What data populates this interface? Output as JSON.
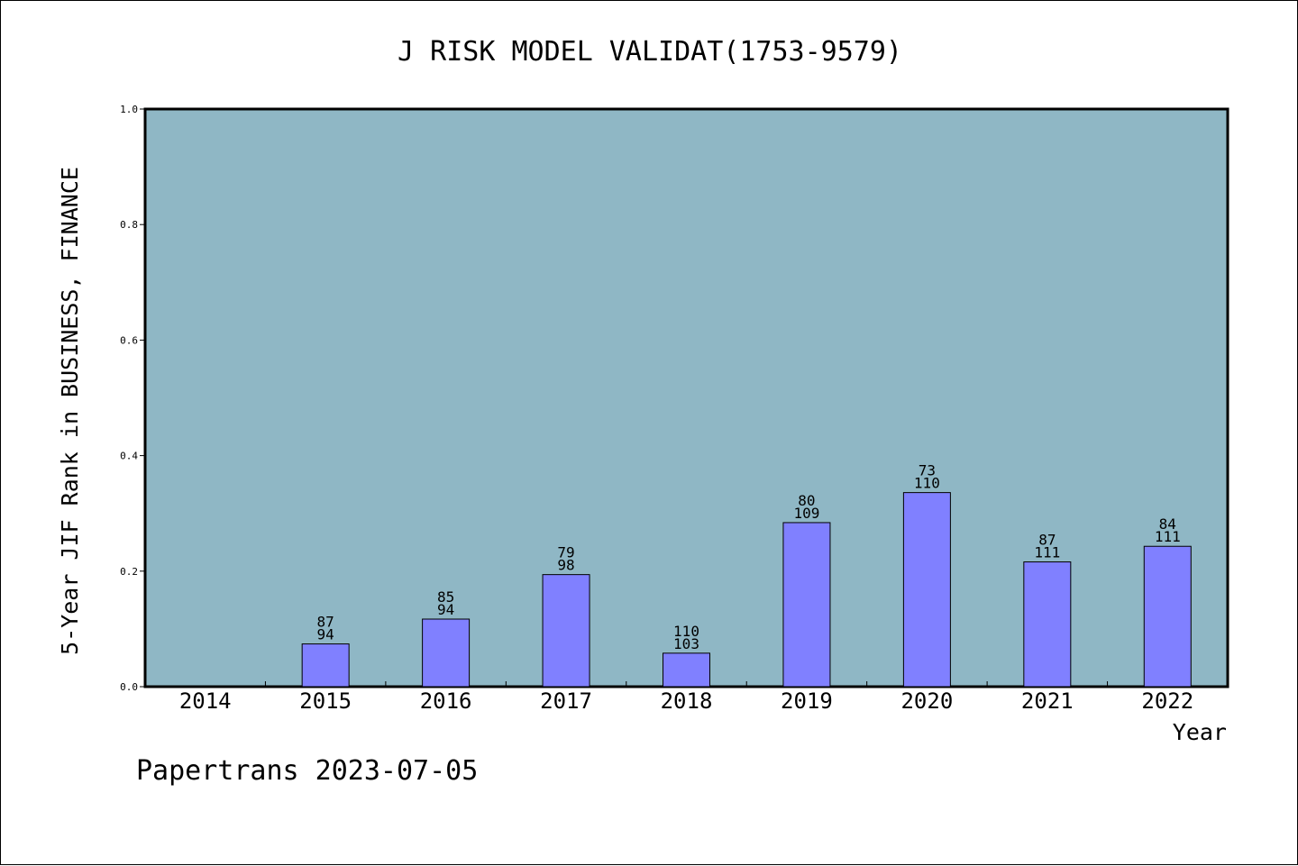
{
  "chart_data": {
    "type": "bar",
    "title": "J RISK MODEL VALIDAT(1753-9579)",
    "xlabel": "Year",
    "ylabel": "5-Year JIF Rank in BUSINESS, FINANCE",
    "ylim": [
      0,
      1
    ],
    "yticks": [
      "0.0",
      "0.2",
      "0.4",
      "0.6",
      "0.8",
      "1.0"
    ],
    "categories": [
      "2014",
      "2015",
      "2016",
      "2017",
      "2018",
      "2019",
      "2020",
      "2021",
      "2022"
    ],
    "values": [
      null,
      0.074,
      0.117,
      0.194,
      0.058,
      0.284,
      0.336,
      0.216,
      0.243
    ],
    "label_top": [
      "",
      "87",
      "85",
      "79",
      "110",
      "80",
      "73",
      "87",
      "84"
    ],
    "label_bottom": [
      "",
      "94",
      "94",
      "98",
      "103",
      "109",
      "110",
      "111",
      "111"
    ],
    "grid": false,
    "colors": {
      "plot_bg": "#8fb7c5",
      "bar": "#8080ff",
      "bar_edge": "#000000"
    }
  },
  "footer": "Papertrans 2023-07-05"
}
